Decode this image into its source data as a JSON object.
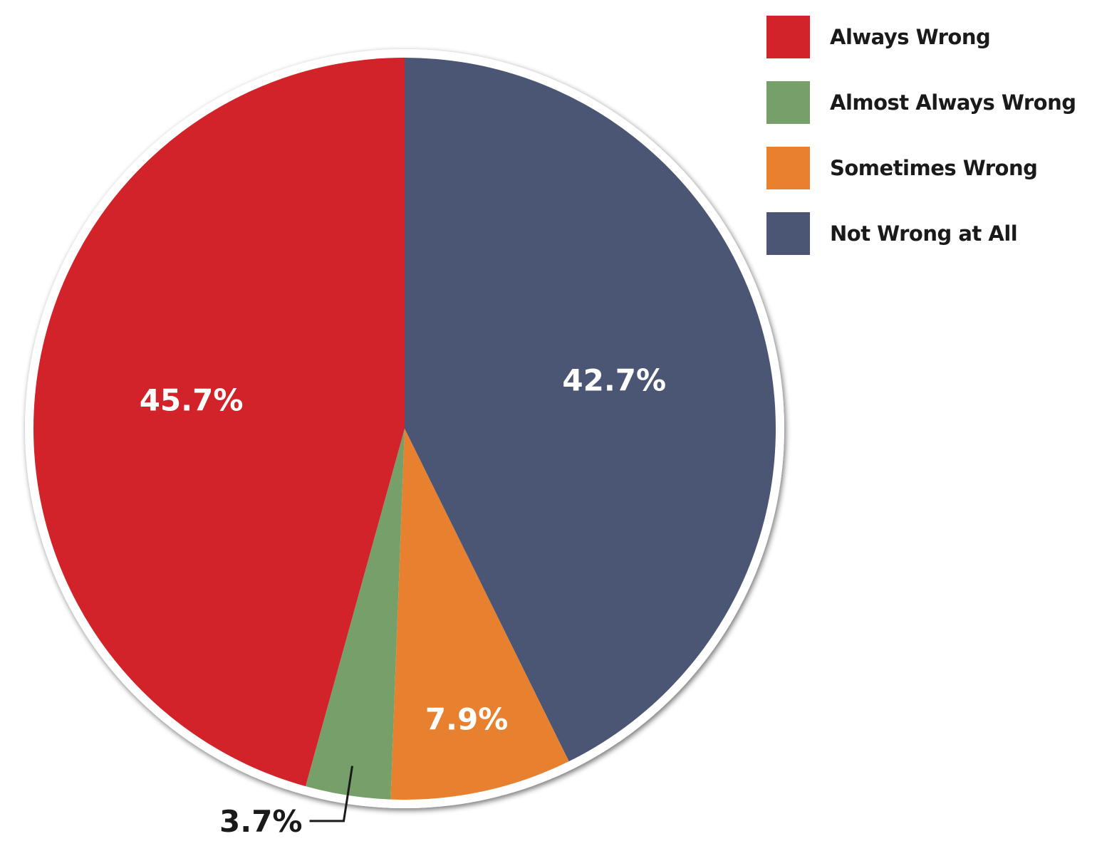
{
  "chart_data": {
    "type": "pie",
    "categories": [
      "Always Wrong",
      "Almost Always Wrong",
      "Sometimes Wrong",
      "Not Wrong at All"
    ],
    "values": [
      45.7,
      3.7,
      7.9,
      42.7
    ],
    "value_labels": [
      "45.7%",
      "3.7%",
      "7.9%",
      "42.7%"
    ],
    "colors": [
      "#d2232a",
      "#779f6a",
      "#e8812f",
      "#4b5675"
    ],
    "start_angle": "12 o'clock",
    "direction": "clockwise order: Not Wrong at All, Sometimes Wrong, Almost Always Wrong, Always Wrong",
    "legend_position": "top-right",
    "title": "",
    "xlabel": "",
    "ylabel": ""
  },
  "legend": {
    "items": [
      {
        "label": "Always Wrong",
        "color": "#d2232a"
      },
      {
        "label": "Almost Always Wrong",
        "color": "#779f6a"
      },
      {
        "label": "Sometimes Wrong",
        "color": "#e8812f"
      },
      {
        "label": "Not Wrong at All",
        "color": "#4b5675"
      }
    ]
  }
}
